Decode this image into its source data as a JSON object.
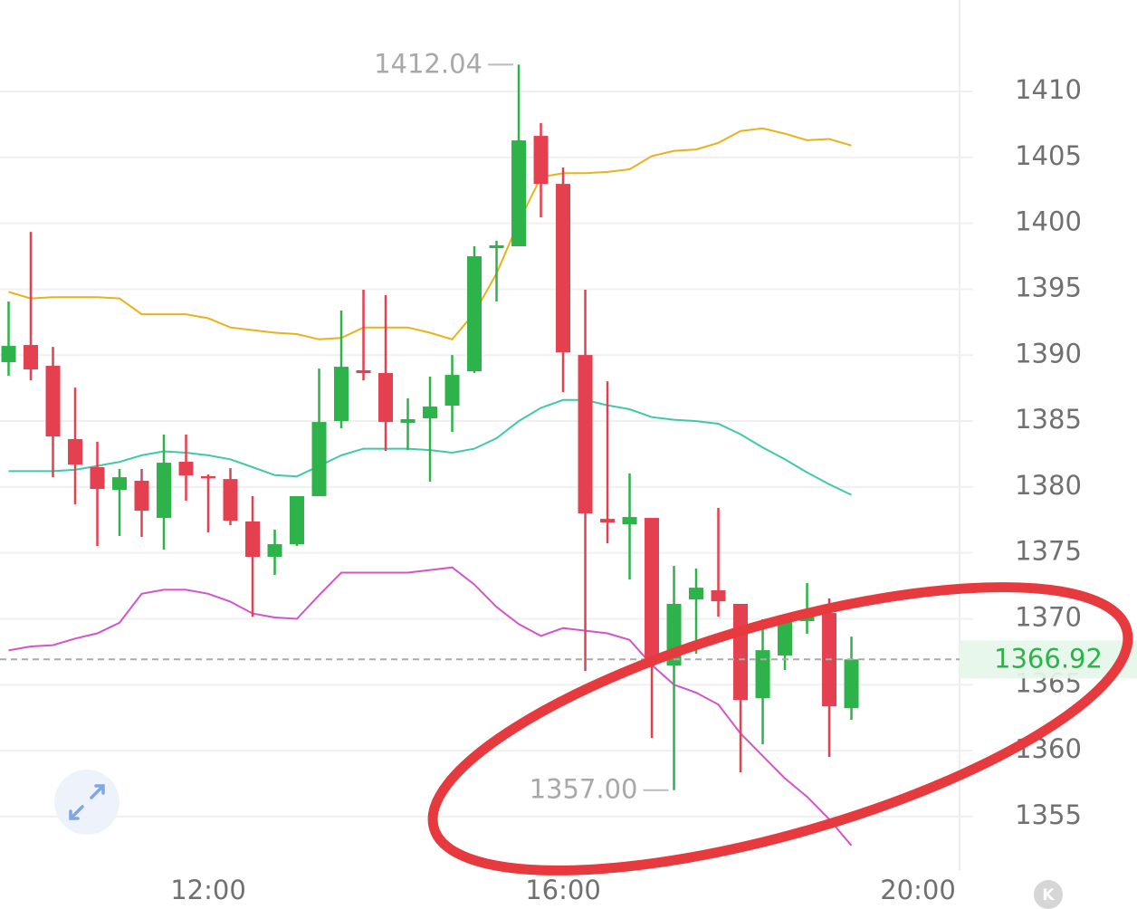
{
  "chart_data": {
    "type": "candlestick",
    "x": [
      9.75,
      10,
      10.25,
      10.5,
      10.75,
      11,
      11.25,
      11.5,
      11.75,
      12,
      12.25,
      12.5,
      12.75,
      13,
      13.25,
      13.5,
      13.75,
      14,
      14.25,
      14.5,
      14.75,
      15,
      15.25,
      15.5,
      15.75,
      16,
      16.25,
      16.5,
      16.75,
      17,
      17.25,
      17.5,
      17.75,
      18,
      18.25,
      18.5,
      18.75,
      19,
      19.25
    ],
    "open": [
      1389.47,
      1390.77,
      1389.19,
      1383.63,
      1381.5,
      1379.78,
      1380.47,
      1377.65,
      1381.91,
      1380.82,
      1380.6,
      1377.38,
      1374.7,
      1375.66,
      1379.3,
      1385.0,
      1388.85,
      1388.64,
      1384.86,
      1385.21,
      1386.17,
      1388.78,
      1398.12,
      1398.26,
      1406.63,
      1402.99,
      1390.01,
      1377.58,
      1377.17,
      1377.65,
      1366.46,
      1371.47,
      1372.16,
      1371.13,
      1363.98,
      1367.21,
      1369.82,
      1370.44,
      1363.22
    ],
    "high": [
      1394.07,
      1399.35,
      1390.63,
      1387.54,
      1383.42,
      1381.36,
      1381.36,
      1383.97,
      1383.97,
      1380.95,
      1381.43,
      1379.3,
      1376.76,
      1379.3,
      1388.98,
      1393.38,
      1394.96,
      1394.55,
      1386.72,
      1388.37,
      1390.01,
      1398.26,
      1398.67,
      1412.04,
      1407.6,
      1404.23,
      1394.96,
      1388.02,
      1381.02,
      1377.65,
      1374.01,
      1373.81,
      1378.41,
      1371.13,
      1369.96,
      1369.82,
      1372.71,
      1371.54,
      1368.65
    ],
    "low": [
      1388.43,
      1388.09,
      1380.74,
      1378.68,
      1375.52,
      1376.28,
      1376.21,
      1375.25,
      1378.96,
      1376.55,
      1377.1,
      1370.16,
      1373.32,
      1375.52,
      1379.3,
      1384.45,
      1388.09,
      1382.73,
      1382.8,
      1380.4,
      1384.18,
      1388.64,
      1394.07,
      1398.26,
      1400.45,
      1387.2,
      1366.04,
      1375.73,
      1372.98,
      1360.96,
      1357.0,
      1367.35,
      1370.16,
      1358.35,
      1360.48,
      1366.11,
      1368.86,
      1359.52,
      1362.34
    ],
    "close": [
      1390.7,
      1388.92,
      1383.83,
      1381.7,
      1379.85,
      1380.74,
      1378.2,
      1381.84,
      1380.88,
      1380.67,
      1377.44,
      1374.7,
      1375.66,
      1379.3,
      1384.93,
      1389.12,
      1388.64,
      1384.93,
      1385.14,
      1386.1,
      1388.5,
      1397.5,
      1398.33,
      1406.29,
      1402.99,
      1390.22,
      1378.0,
      1377.31,
      1377.72,
      1366.59,
      1371.13,
      1372.36,
      1371.33,
      1363.85,
      1367.62,
      1369.82,
      1370.51,
      1363.36,
      1366.92
    ],
    "up_color": "#2db34a",
    "down_color": "#e5404f",
    "series": [
      {
        "color": "#e8b21a",
        "values": [
          1394.8,
          1394.3,
          1394.4,
          1394.4,
          1394.4,
          1394.3,
          1393.1,
          1393.1,
          1393.1,
          1392.8,
          1392.1,
          1391.9,
          1391.7,
          1391.6,
          1391.2,
          1391.3,
          1392.1,
          1392.1,
          1392.1,
          1391.7,
          1391.2,
          1393.2,
          1396.2,
          1400.1,
          1403.5,
          1403.8,
          1403.8,
          1403.9,
          1404.1,
          1405.1,
          1405.5,
          1405.6,
          1406.1,
          1407.0,
          1407.2,
          1406.8,
          1406.3,
          1406.4,
          1405.9
        ]
      },
      {
        "color": "#3ec9a7",
        "values": [
          1381.2,
          1381.2,
          1381.2,
          1381.3,
          1381.6,
          1381.9,
          1382.4,
          1382.7,
          1382.6,
          1382.4,
          1382.1,
          1381.5,
          1380.9,
          1380.8,
          1381.6,
          1382.4,
          1382.9,
          1382.9,
          1382.9,
          1382.8,
          1382.6,
          1382.9,
          1383.7,
          1385.0,
          1386.0,
          1386.6,
          1386.6,
          1386.2,
          1385.9,
          1385.3,
          1385.1,
          1385.0,
          1384.8,
          1384.0,
          1383.0,
          1382.1,
          1381.1,
          1380.2,
          1379.4
        ]
      },
      {
        "color": "#d553c8",
        "values": [
          1367.6,
          1367.9,
          1368.0,
          1368.5,
          1368.9,
          1369.7,
          1371.9,
          1372.2,
          1372.2,
          1371.9,
          1371.3,
          1370.4,
          1370.1,
          1370.0,
          1371.8,
          1373.5,
          1373.5,
          1373.5,
          1373.5,
          1373.7,
          1373.9,
          1372.6,
          1370.9,
          1369.6,
          1368.7,
          1369.3,
          1369.1,
          1368.9,
          1368.4,
          1366.5,
          1365.0,
          1364.4,
          1363.5,
          1361.3,
          1359.6,
          1357.9,
          1356.5,
          1354.8,
          1352.8
        ]
      }
    ],
    "xlim": [
      9.653,
      20.469
    ],
    "xticks": [
      {
        "value": 12,
        "label": "12:00"
      },
      {
        "value": 16,
        "label": "16:00"
      },
      {
        "value": 20,
        "label": "20:00"
      }
    ],
    "ylim": [
      1350.87,
      1416.94
    ],
    "yticks": [
      1355,
      1360,
      1365,
      1370,
      1375,
      1380,
      1385,
      1390,
      1395,
      1400,
      1405,
      1410
    ],
    "grid": true,
    "annotations": [
      {
        "value": 1412.04,
        "label": "1412.04"
      },
      {
        "value": 1357,
        "label": "1357.00"
      }
    ],
    "last_price": {
      "value": 1366.92,
      "label": "1366.92"
    },
    "k_button": "K"
  }
}
